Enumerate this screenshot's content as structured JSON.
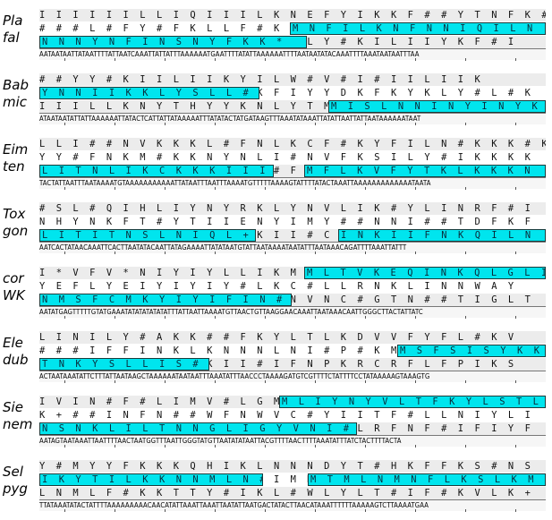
{
  "blocks": [
    {
      "species": [
        "Pla",
        "fal"
      ],
      "rows": [
        "I I I I I I L L I Q I I I L K N E F Y I K K F # # Y T N F K # I",
        "# # # L # F Y # F K L L F # K M N F I L K N F N N I Q I L N I",
        "N N N Y N F I N S N Y F K K * I L Y # K I L I I Y K F # I"
      ],
      "orfs": [
        {
          "text": "M N F I L K N F N N I Q I L N",
          "row": 2
        },
        {
          "text": "N N N Y N F I N S N Y F K K *",
          "row": 3
        }
      ],
      "dna": "AATAATAATTATAATTTTATTAATCAAATTATTATTTAAAAAATGAATTTTATATTAAAAAATTTTAATAATATACAAATTTTAAATAATAATTTAA"
    },
    {
      "species": [
        "Bab",
        "mic"
      ],
      "rows": [
        "# # Y Y # K I I L I I K Y I L W # V # I # I I L I I K",
        "Y N N I I K K L Y S L L # K F I Y Y D K F K Y K L Y # L # K",
        "I I I L L K N Y T H Y Y K N L Y T M I S L N N I N Y I N Y K N"
      ],
      "orfs": [
        {
          "text": "Y N N I I K K L Y S L L #",
          "row": 2
        },
        {
          "text": "M I S L N N I N Y I N Y K N",
          "row": 3
        }
      ],
      "dna": "ATAATAATATTATTAAAAAATTATACTCATTATTATAAAAATTTATATACTATGATAAGTTTAAATATAAATTATATTAATTATTAATAAAAAATAAT"
    },
    {
      "species": [
        "Eim",
        "ten"
      ],
      "rows": [
        "L L I # # N V K K K L # F N L K C F # K Y F I L N # K K K # K",
        "Y Y # F N K M # K K N Y N L I # N V F K S I L Y # I K K K K",
        "L I T N L I K C K K K I I I # F K M F L K V F Y T K L K K K N"
      ],
      "orfs": [
        {
          "text": "L I T N L I K C K K K I I I #",
          "row": 3
        },
        {
          "text": "M F L K V F Y T K L K K K N",
          "row": 3
        }
      ],
      "dna": "TACTATTAATTTAATAAAATGTAAAAAAAAAAATTATAATTTAATTTAAAATGTTTTTAAAAGTATTTTATACTAAATTAAAAAAAAAAAAATAATA"
    },
    {
      "species": [
        "Tox",
        "gon"
      ],
      "rows": [
        "# S L # Q I H L I Y N Y R K L Y N V L I K # Y L I N R F # I",
        "N H Y N K F T # Y T I I E N Y I M Y # # N N I # # T D F K F",
        "L I T I T N S L N I Q L + K I I # C I N K I I F N K Q I L N"
      ],
      "orfs": [
        {
          "text": "L I T I T N S L N I Q L +",
          "row": 3
        },
        {
          "text": "I N K I I F N K Q I L N",
          "row": 3
        }
      ],
      "dna": "AATCACTATAACAAATTCACTTAATATACAATTATAGAAAATTATATAATGTATTAATAAAATAATATTTAATAAACAGATTTTAAATTATTT"
    },
    {
      "species": [
        "cor",
        "WK"
      ],
      "rows": [
        "I * V F V * N I Y I Y L L I K M L T V K E Q I N K Q L G L I",
        "Y E F L Y E I Y I Y I Y # L K C # L L R N K L I N N W A Y",
        "N M S F C M K Y I Y I F I N # N V N C # G T N # # T I G L T"
      ],
      "orfs": [
        {
          "text": "M L T V K E Q I N K Q L G L I",
          "row": 1
        },
        {
          "text": "N M S F C M K Y I Y I F I N #",
          "row": 3
        }
      ],
      "dna": "AATATGAGTTTTTGTATGAAATATATATATATATTTATTAATTAAAATGTTAACTGTTAAGGAACAAATTAATAAACAATTGGGCTTACTATTATC"
    },
    {
      "species": [
        "Ele",
        "dub"
      ],
      "rows": [
        "L I N I L Y # A K K # # F K Y L T L K D V V F Y F L # K V",
        "# # # I F F I N K L K N N N L N I # P # K M S F S I S Y K K",
        "T N K Y S L L I S # K I I # I F N P K R C R F L F P I K S"
      ],
      "orfs": [
        {
          "text": "M S F S I S Y K K",
          "row": 2
        },
        {
          "text": "T N K Y S L L I S #",
          "row": 3
        }
      ],
      "dna": "ACTAATAAATATTCTTTATTAATAAGCTAAAAAATAATAATTTAAATATTTAACCCTAAAAGATGTCGTTTTCTATTTTCCTATAAAAAGTAAAGTG"
    },
    {
      "species": [
        "Sie",
        "nem"
      ],
      "rows": [
        "I V I N # F # L I M V # L G M L I Y N Y V L T F K Y L S T L",
        "K + # # I N F N # # W F N W V C # Y I I T F # L L N I Y L I",
        "N S N K L I L T N N G L I G Y V N I # L R F N F # I F I Y F"
      ],
      "orfs": [
        {
          "text": "M L I Y N Y V L T F K Y L S T L",
          "row": 1
        },
        {
          "text": "N S N K L I L T N N G L I G Y V N I #",
          "row": 3
        }
      ],
      "dna": "AATAGTAATAAATTAATTTTAACTAATGGTTTAATTGGGTATGTTAATATATAATTACGTTTTAACTTTTAAATATTTATCTACTTTTACTA"
    },
    {
      "species": [
        "Sel",
        "pyg"
      ],
      "rows": [
        "Y # M Y Y F K K K Q H I K L N N N D Y T # H K F F K S # N S",
        "I K Y T I L K K N N M L N # I M M T M L N M N F L K S L K M",
        "L N M L F # K K T T Y # I K L # W L Y L T # I F # K V L K +"
      ],
      "orfs": [
        {
          "text": "I K Y T I L K K N N M L N #",
          "row": 2
        },
        {
          "text": "M T M L N M N F L K S L K M",
          "row": 2
        }
      ],
      "dna": "TTATAAATATACTATTTTAAAAAAAAACAACATATTAAATTAAATTAATATTAATGACTATACTTAACATAAATTTTTTAAAAAGTCTTAAAATGAA"
    }
  ]
}
